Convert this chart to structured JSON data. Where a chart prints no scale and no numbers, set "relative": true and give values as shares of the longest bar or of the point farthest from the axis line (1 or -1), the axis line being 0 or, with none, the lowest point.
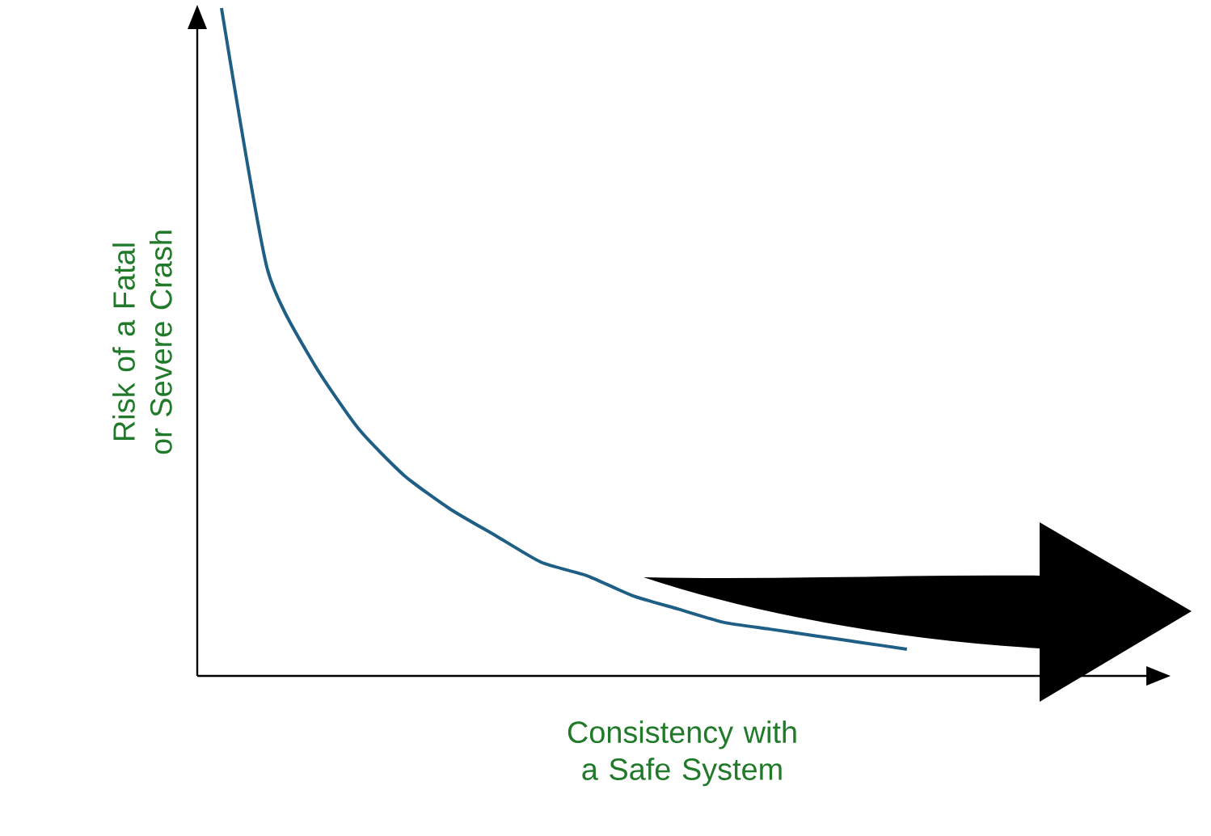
{
  "chart_data": {
    "type": "line",
    "relative": true,
    "categories": [
      null,
      null,
      null,
      null,
      null,
      null,
      null,
      null,
      null,
      null,
      null,
      null,
      null,
      null,
      null,
      null
    ],
    "values": [
      1.0,
      0.61,
      0.47,
      0.37,
      0.3,
      0.25,
      0.21,
      0.17,
      0.15,
      0.12,
      0.1,
      0.08,
      0.07,
      0.06,
      0.05,
      0.04
    ],
    "color": "#1f5f86",
    "xlabel": "Consistency with a Safe System",
    "ylabel": "Risk of a Fatal or Severe Crash"
  }
}
